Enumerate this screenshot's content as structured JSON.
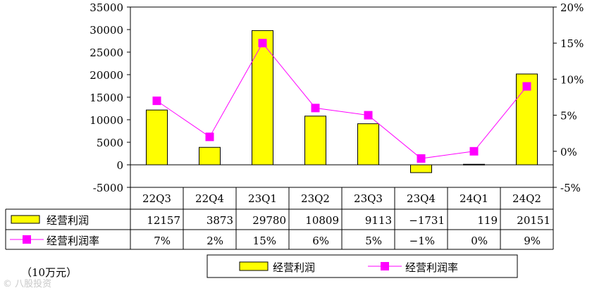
{
  "chart_data": {
    "type": "bar",
    "categories": [
      "22Q3",
      "22Q4",
      "23Q1",
      "23Q2",
      "23Q3",
      "23Q4",
      "24Q1",
      "24Q2"
    ],
    "series": [
      {
        "name": "经营利润",
        "type": "bar",
        "axis": "left",
        "values": [
          12157,
          3873,
          29780,
          10809,
          9113,
          -1731,
          119,
          20151
        ],
        "color": "#ffff00"
      },
      {
        "name": "经营利润率",
        "type": "line",
        "axis": "right",
        "values": [
          7,
          2,
          15,
          6,
          5,
          -1,
          0,
          9
        ],
        "labels": [
          "7%",
          "2%",
          "15%",
          "6%",
          "5%",
          "-1%",
          "0%",
          "9%"
        ],
        "color": "#ff00ff"
      }
    ],
    "ylim_left": [
      -5000,
      35000
    ],
    "yticks_left": [
      "35000",
      "30000",
      "25000",
      "20000",
      "15000",
      "10000",
      "5000",
      "0",
      "-5000"
    ],
    "ylim_right": [
      -5,
      20
    ],
    "yticks_right": [
      "20%",
      "15%",
      "10%",
      "5%",
      "0%",
      "-5%"
    ],
    "grid": false,
    "legend_position": "bottom-center",
    "data_table": true
  },
  "unit_label": "（10万元）",
  "watermark": "© 八股投资"
}
